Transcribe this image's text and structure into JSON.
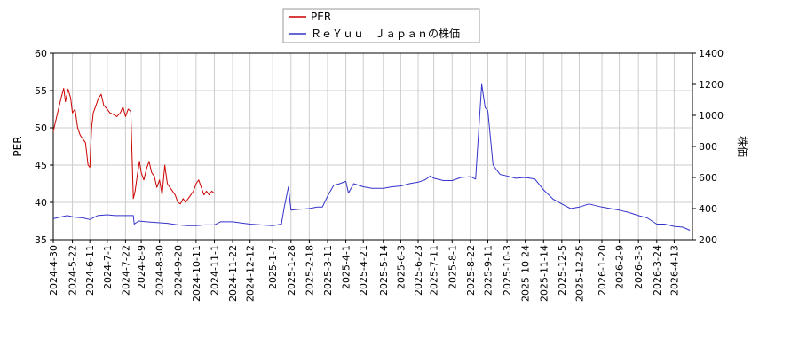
{
  "chart_data": {
    "type": "line",
    "legend": {
      "placement": "top-center",
      "entries": [
        {
          "label": "PER",
          "color": "#cc0000"
        },
        {
          "label": "ＲｅＹｕｕ　Ｊａｐａｎの株価",
          "color": "#3333cc"
        }
      ]
    },
    "y_left": {
      "label": "PER",
      "min": 35,
      "max": 60,
      "ticks": [
        35,
        40,
        45,
        50,
        55,
        60
      ]
    },
    "y_right": {
      "label": "株価",
      "min": 200,
      "max": 1400,
      "ticks": [
        200,
        400,
        600,
        800,
        1000,
        1200,
        1400
      ]
    },
    "x_range": [
      "2024-04-30",
      "2026-05-04"
    ],
    "x_ticks": [
      "2024-4-30",
      "2024-5-22",
      "2024-6-11",
      "2024-7-1",
      "2024-7-22",
      "2024-8-9",
      "2024-8-30",
      "2024-9-20",
      "2024-10-11",
      "2024-11-1",
      "2024-11-22",
      "2024-12-12",
      "2025-1-7",
      "2025-1-28",
      "2025-2-18",
      "2025-3-11",
      "2025-4-1",
      "2025-4-21",
      "2025-5-14",
      "2025-6-3",
      "2025-6-23",
      "2025-7-11",
      "2025-8-1",
      "2025-8-22",
      "2025-9-11",
      "2025-10-3",
      "2025-10-24",
      "2025-11-14",
      "2025-12-5",
      "2025-12-25",
      "2026-1-20",
      "2026-2-9",
      "2026-3-3",
      "2026-3-24",
      "2026-4-13"
    ],
    "grid": true,
    "series": [
      {
        "name": "PER",
        "axis": "left",
        "color": "#cc0000",
        "points": [
          [
            "2024-04-30",
            49.5
          ],
          [
            "2024-05-03",
            51
          ],
          [
            "2024-05-06",
            52.5
          ],
          [
            "2024-05-09",
            54
          ],
          [
            "2024-05-12",
            55.3
          ],
          [
            "2024-05-14",
            53.5
          ],
          [
            "2024-05-17",
            55.2
          ],
          [
            "2024-05-20",
            54
          ],
          [
            "2024-05-22",
            52
          ],
          [
            "2024-05-25",
            52.5
          ],
          [
            "2024-05-28",
            50
          ],
          [
            "2024-05-31",
            49
          ],
          [
            "2024-06-03",
            48.5
          ],
          [
            "2024-06-06",
            48
          ],
          [
            "2024-06-09",
            45
          ],
          [
            "2024-06-11",
            44.7
          ],
          [
            "2024-06-13",
            50
          ],
          [
            "2024-06-15",
            52
          ],
          [
            "2024-06-18",
            53
          ],
          [
            "2024-06-21",
            54
          ],
          [
            "2024-06-24",
            54.5
          ],
          [
            "2024-06-27",
            53
          ],
          [
            "2024-07-01",
            52.5
          ],
          [
            "2024-07-04",
            52
          ],
          [
            "2024-07-08",
            51.8
          ],
          [
            "2024-07-12",
            51.5
          ],
          [
            "2024-07-16",
            52
          ],
          [
            "2024-07-19",
            52.8
          ],
          [
            "2024-07-22",
            51.5
          ],
          [
            "2024-07-25",
            52.5
          ],
          [
            "2024-07-28",
            52.2
          ],
          [
            "2024-07-31",
            40.5
          ],
          [
            "2024-08-02",
            41.5
          ],
          [
            "2024-08-05",
            44
          ],
          [
            "2024-08-07",
            45.5
          ],
          [
            "2024-08-09",
            44
          ],
          [
            "2024-08-12",
            43
          ],
          [
            "2024-08-15",
            44.5
          ],
          [
            "2024-08-18",
            45.5
          ],
          [
            "2024-08-21",
            44
          ],
          [
            "2024-08-24",
            43.5
          ],
          [
            "2024-08-27",
            42
          ],
          [
            "2024-08-30",
            43
          ],
          [
            "2024-09-02",
            41
          ],
          [
            "2024-09-05",
            45
          ],
          [
            "2024-09-08",
            42.5
          ],
          [
            "2024-09-11",
            42
          ],
          [
            "2024-09-14",
            41.5
          ],
          [
            "2024-09-17",
            41
          ],
          [
            "2024-09-20",
            40
          ],
          [
            "2024-09-23",
            39.8
          ],
          [
            "2024-09-26",
            40.5
          ],
          [
            "2024-09-29",
            40
          ],
          [
            "2024-10-02",
            40.5
          ],
          [
            "2024-10-05",
            41
          ],
          [
            "2024-10-08",
            41.5
          ],
          [
            "2024-10-11",
            42.5
          ],
          [
            "2024-10-14",
            43
          ],
          [
            "2024-10-17",
            42
          ],
          [
            "2024-10-20",
            41
          ],
          [
            "2024-10-23",
            41.5
          ],
          [
            "2024-10-26",
            41
          ],
          [
            "2024-10-29",
            41.5
          ],
          [
            "2024-11-01",
            41.2
          ]
        ]
      },
      {
        "name": "ＲｅＹｕｕ　Ｊａｐａｎの株価",
        "axis": "right",
        "color": "#3333cc",
        "points": [
          [
            "2024-04-30",
            335
          ],
          [
            "2024-05-08",
            345
          ],
          [
            "2024-05-16",
            355
          ],
          [
            "2024-05-24",
            345
          ],
          [
            "2024-06-03",
            340
          ],
          [
            "2024-06-11",
            330
          ],
          [
            "2024-06-20",
            355
          ],
          [
            "2024-07-01",
            360
          ],
          [
            "2024-07-10",
            355
          ],
          [
            "2024-07-22",
            355
          ],
          [
            "2024-07-31",
            355
          ],
          [
            "2024-08-01",
            300
          ],
          [
            "2024-08-06",
            320
          ],
          [
            "2024-08-15",
            315
          ],
          [
            "2024-08-27",
            310
          ],
          [
            "2024-09-08",
            305
          ],
          [
            "2024-09-20",
            295
          ],
          [
            "2024-10-01",
            290
          ],
          [
            "2024-10-11",
            290
          ],
          [
            "2024-10-21",
            295
          ],
          [
            "2024-11-01",
            295
          ],
          [
            "2024-11-08",
            315
          ],
          [
            "2024-11-22",
            315
          ],
          [
            "2024-12-05",
            305
          ],
          [
            "2024-12-12",
            300
          ],
          [
            "2024-12-24",
            295
          ],
          [
            "2025-01-07",
            290
          ],
          [
            "2025-01-17",
            300
          ],
          [
            "2025-01-20",
            400
          ],
          [
            "2025-01-25",
            540
          ],
          [
            "2025-01-28",
            390
          ],
          [
            "2025-02-05",
            395
          ],
          [
            "2025-02-18",
            400
          ],
          [
            "2025-02-27",
            410
          ],
          [
            "2025-03-05",
            410
          ],
          [
            "2025-03-11",
            480
          ],
          [
            "2025-03-18",
            550
          ],
          [
            "2025-03-25",
            560
          ],
          [
            "2025-04-01",
            575
          ],
          [
            "2025-04-04",
            500
          ],
          [
            "2025-04-10",
            560
          ],
          [
            "2025-04-21",
            540
          ],
          [
            "2025-05-01",
            530
          ],
          [
            "2025-05-14",
            530
          ],
          [
            "2025-05-24",
            540
          ],
          [
            "2025-06-03",
            545
          ],
          [
            "2025-06-13",
            560
          ],
          [
            "2025-06-23",
            570
          ],
          [
            "2025-07-01",
            585
          ],
          [
            "2025-07-07",
            610
          ],
          [
            "2025-07-11",
            595
          ],
          [
            "2025-07-22",
            580
          ],
          [
            "2025-08-01",
            580
          ],
          [
            "2025-08-11",
            600
          ],
          [
            "2025-08-22",
            605
          ],
          [
            "2025-08-28",
            590
          ],
          [
            "2025-09-04",
            1200
          ],
          [
            "2025-09-08",
            1050
          ],
          [
            "2025-09-11",
            1030
          ],
          [
            "2025-09-17",
            680
          ],
          [
            "2025-09-25",
            620
          ],
          [
            "2025-10-03",
            610
          ],
          [
            "2025-10-13",
            595
          ],
          [
            "2025-10-24",
            600
          ],
          [
            "2025-11-04",
            590
          ],
          [
            "2025-11-14",
            520
          ],
          [
            "2025-11-25",
            460
          ],
          [
            "2025-12-05",
            430
          ],
          [
            "2025-12-15",
            400
          ],
          [
            "2025-12-25",
            410
          ],
          [
            "2026-01-05",
            430
          ],
          [
            "2026-01-20",
            410
          ],
          [
            "2026-01-30",
            400
          ],
          [
            "2026-02-09",
            390
          ],
          [
            "2026-02-20",
            375
          ],
          [
            "2026-03-03",
            355
          ],
          [
            "2026-03-13",
            340
          ],
          [
            "2026-03-24",
            300
          ],
          [
            "2026-04-02",
            300
          ],
          [
            "2026-04-13",
            285
          ],
          [
            "2026-04-23",
            280
          ],
          [
            "2026-05-01",
            260
          ]
        ]
      }
    ]
  }
}
